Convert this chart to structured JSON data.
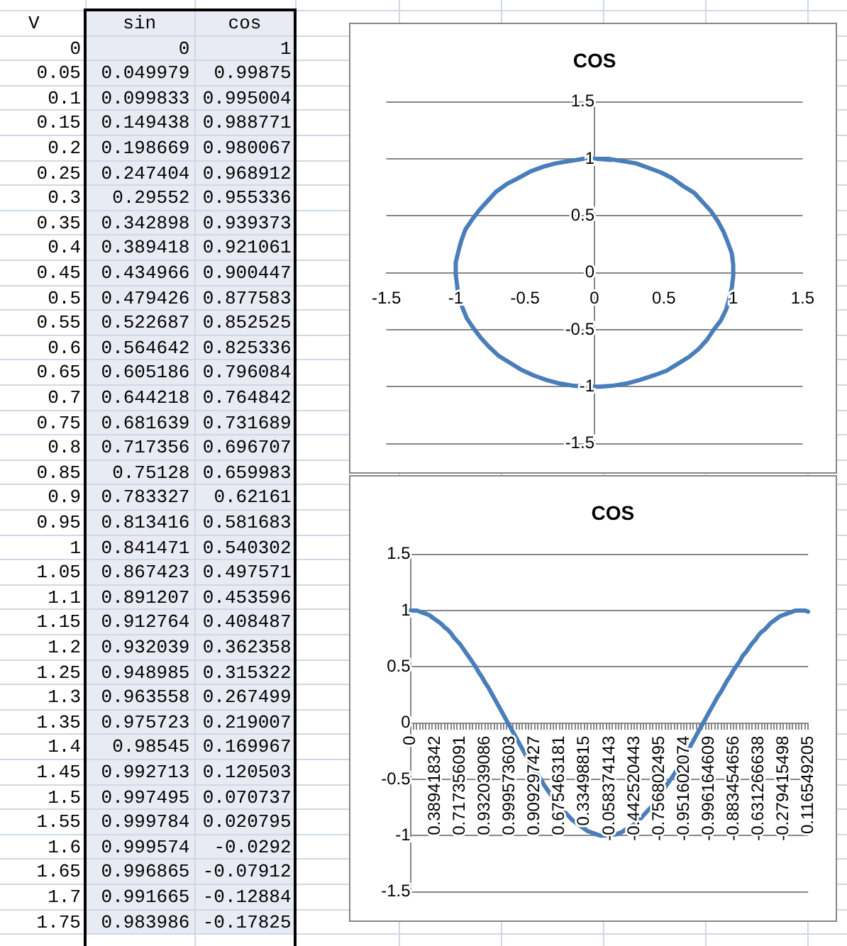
{
  "chart_data": [
    {
      "type": "heatmap",
      "ylabel": "V",
      "categories": [
        "sin",
        "cos"
      ],
      "y_categories": [
        "0",
        "0.05",
        "0.1",
        "0.15",
        "0.2",
        "0.25",
        "0.3",
        "0.35",
        "0.4",
        "0.45",
        "0.5",
        "0.55",
        "0.6",
        "0.65",
        "0.7",
        "0.75",
        "0.8",
        "0.85",
        "0.9",
        "0.95",
        "1",
        "1.05",
        "1.1",
        "1.15",
        "1.2",
        "1.25",
        "1.3",
        "1.35",
        "1.4",
        "1.45",
        "1.5",
        "1.55",
        "1.6",
        "1.65",
        "1.7",
        "1.75"
      ],
      "cells": [
        [
          0,
          1
        ],
        [
          0.049979,
          0.99875
        ],
        [
          0.099833,
          0.995004
        ],
        [
          0.149438,
          0.988771
        ],
        [
          0.198669,
          0.980067
        ],
        [
          0.247404,
          0.968912
        ],
        [
          0.29552,
          0.955336
        ],
        [
          0.342898,
          0.939373
        ],
        [
          0.389418,
          0.921061
        ],
        [
          0.434966,
          0.900447
        ],
        [
          0.479426,
          0.877583
        ],
        [
          0.522687,
          0.852525
        ],
        [
          0.564642,
          0.825336
        ],
        [
          0.605186,
          0.796084
        ],
        [
          0.644218,
          0.764842
        ],
        [
          0.681639,
          0.731689
        ],
        [
          0.717356,
          0.696707
        ],
        [
          0.75128,
          0.659983
        ],
        [
          0.783327,
          0.62161
        ],
        [
          0.813416,
          0.581683
        ],
        [
          0.841471,
          0.540302
        ],
        [
          0.867423,
          0.497571
        ],
        [
          0.891207,
          0.453596
        ],
        [
          0.912764,
          0.408487
        ],
        [
          0.932039,
          0.362358
        ],
        [
          0.948985,
          0.315322
        ],
        [
          0.963558,
          0.267499
        ],
        [
          0.975723,
          0.219007
        ],
        [
          0.98545,
          0.169967
        ],
        [
          0.992713,
          0.120503
        ],
        [
          0.997495,
          0.070737
        ],
        [
          0.999784,
          0.020795
        ],
        [
          0.999574,
          -0.0292
        ],
        [
          0.996865,
          -0.07912
        ],
        [
          0.991665,
          -0.12884
        ],
        [
          0.983986,
          -0.17825
        ]
      ],
      "color": "#e8ebf4",
      "data_labels": true
    },
    {
      "type": "line",
      "title": "COS",
      "x": [
        0,
        0.1,
        0.2,
        0.3,
        0.39,
        0.48,
        0.56,
        0.64,
        0.72,
        0.78,
        0.84,
        0.89,
        0.93,
        0.96,
        0.99,
        1,
        1,
        0.99,
        0.97,
        0.95,
        0.91,
        0.86,
        0.81,
        0.75,
        0.68,
        0.6,
        0.52,
        0.43,
        0.33,
        0.24,
        0.14,
        0.04,
        -0.06,
        -0.16,
        -0.26,
        -0.35,
        -0.44,
        -0.53,
        -0.61,
        -0.69,
        -0.76,
        -0.82,
        -0.87,
        -0.92,
        -0.95,
        -0.98,
        -0.99,
        -1,
        -1,
        -0.98,
        -0.96,
        -0.93,
        -0.88,
        -0.83,
        -0.77,
        -0.71,
        -0.63,
        -0.55,
        -0.46,
        -0.37,
        -0.28,
        -0.18,
        -0.08,
        0.02,
        0.12
      ],
      "values": [
        1,
        1,
        0.98,
        0.96,
        0.92,
        0.88,
        0.83,
        0.76,
        0.7,
        0.62,
        0.54,
        0.45,
        0.36,
        0.27,
        0.17,
        0.07,
        -0.03,
        -0.13,
        -0.23,
        -0.32,
        -0.42,
        -0.5,
        -0.59,
        -0.67,
        -0.74,
        -0.8,
        -0.86,
        -0.9,
        -0.94,
        -0.97,
        -0.99,
        -1,
        -1,
        -0.99,
        -0.97,
        -0.94,
        -0.9,
        -0.85,
        -0.79,
        -0.73,
        -0.65,
        -0.57,
        -0.49,
        -0.4,
        -0.31,
        -0.21,
        -0.11,
        -0.01,
        0.09,
        0.19,
        0.28,
        0.38,
        0.47,
        0.55,
        0.63,
        0.71,
        0.78,
        0.83,
        0.89,
        0.93,
        0.96,
        0.98,
        1,
        1,
        0.99
      ],
      "color": "#4a7ebb",
      "xlim": [
        -1.5,
        1.5
      ],
      "xticks": [
        -1.5,
        -1,
        -0.5,
        0,
        0.5,
        1,
        1.5
      ],
      "ylim": [
        -1.5,
        1.5
      ],
      "yticks": [
        -1.5,
        -1,
        -0.5,
        0,
        0.5,
        1,
        1.5
      ],
      "grid": "y"
    },
    {
      "type": "line",
      "title": "COS",
      "categories": [
        "0",
        null,
        null,
        null,
        null,
        null,
        null,
        null,
        "0.389418342",
        null,
        null,
        null,
        null,
        null,
        null,
        null,
        "0.717356091",
        null,
        null,
        null,
        null,
        null,
        null,
        null,
        "0.932039086",
        null,
        null,
        null,
        null,
        null,
        null,
        null,
        "0.999573603",
        null,
        null,
        null,
        null,
        null,
        null,
        null,
        "0.909297427",
        null,
        null,
        null,
        null,
        null,
        null,
        null,
        "0.675463181",
        null,
        null,
        null,
        null,
        null,
        null,
        null,
        "0.33498815",
        null,
        null,
        null,
        null,
        null,
        null,
        null,
        "-0.058374143",
        null,
        null,
        null,
        null,
        null,
        null,
        null,
        "-0.442520443",
        null,
        null,
        null,
        null,
        null,
        null,
        null,
        "-0.756802495",
        null,
        null,
        null,
        null,
        null,
        null,
        null,
        "-0.951602074",
        null,
        null,
        null,
        null,
        null,
        null,
        null,
        "-0.996164609",
        null,
        null,
        null,
        null,
        null,
        null,
        null,
        "-0.883454656",
        null,
        null,
        null,
        null,
        null,
        null,
        null,
        "-0.631266638",
        null,
        null,
        null,
        null,
        null,
        null,
        null,
        "-0.279415498",
        null,
        null,
        null,
        null,
        null,
        null,
        null,
        "0.116549205"
      ],
      "values": [
        1,
        1,
        1,
        0.99,
        0.98,
        0.97,
        0.96,
        0.94,
        0.92,
        0.9,
        0.88,
        0.85,
        0.83,
        0.8,
        0.76,
        0.73,
        0.7,
        0.66,
        0.62,
        0.58,
        0.54,
        0.5,
        0.45,
        0.41,
        0.36,
        0.32,
        0.27,
        0.22,
        0.17,
        0.12,
        0.07,
        0.02,
        -0.03,
        -0.08,
        -0.13,
        -0.18,
        -0.23,
        -0.28,
        -0.32,
        -0.37,
        -0.42,
        -0.46,
        -0.5,
        -0.55,
        -0.59,
        -0.63,
        -0.67,
        -0.7,
        -0.74,
        -0.77,
        -0.8,
        -0.83,
        -0.86,
        -0.88,
        -0.9,
        -0.92,
        -0.94,
        -0.96,
        -0.97,
        -0.98,
        -0.99,
        -1,
        -1,
        -1,
        -1,
        -0.99,
        -0.99,
        -0.98,
        -0.97,
        -0.95,
        -0.94,
        -0.92,
        -0.9,
        -0.87,
        -0.85,
        -0.82,
        -0.79,
        -0.76,
        -0.73,
        -0.69,
        -0.65,
        -0.61,
        -0.57,
        -0.53,
        -0.49,
        -0.45,
        -0.4,
        -0.35,
        -0.31,
        -0.26,
        -0.21,
        -0.16,
        -0.11,
        -0.06,
        -0.01,
        0.04,
        0.09,
        0.14,
        0.19,
        0.24,
        0.28,
        0.33,
        0.38,
        0.42,
        0.47,
        0.51,
        0.55,
        0.6,
        0.63,
        0.67,
        0.71,
        0.74,
        0.78,
        0.81,
        0.83,
        0.86,
        0.89,
        0.91,
        0.93,
        0.95,
        0.96,
        0.97,
        0.98,
        0.99,
        1,
        1,
        1,
        1,
        0.99
      ],
      "color": "#4a7ebb",
      "ylim": [
        -1.5,
        1.5
      ],
      "yticks": [
        -1.5,
        -1,
        -0.5,
        0,
        0.5,
        1,
        1.5
      ],
      "grid": "y"
    }
  ]
}
